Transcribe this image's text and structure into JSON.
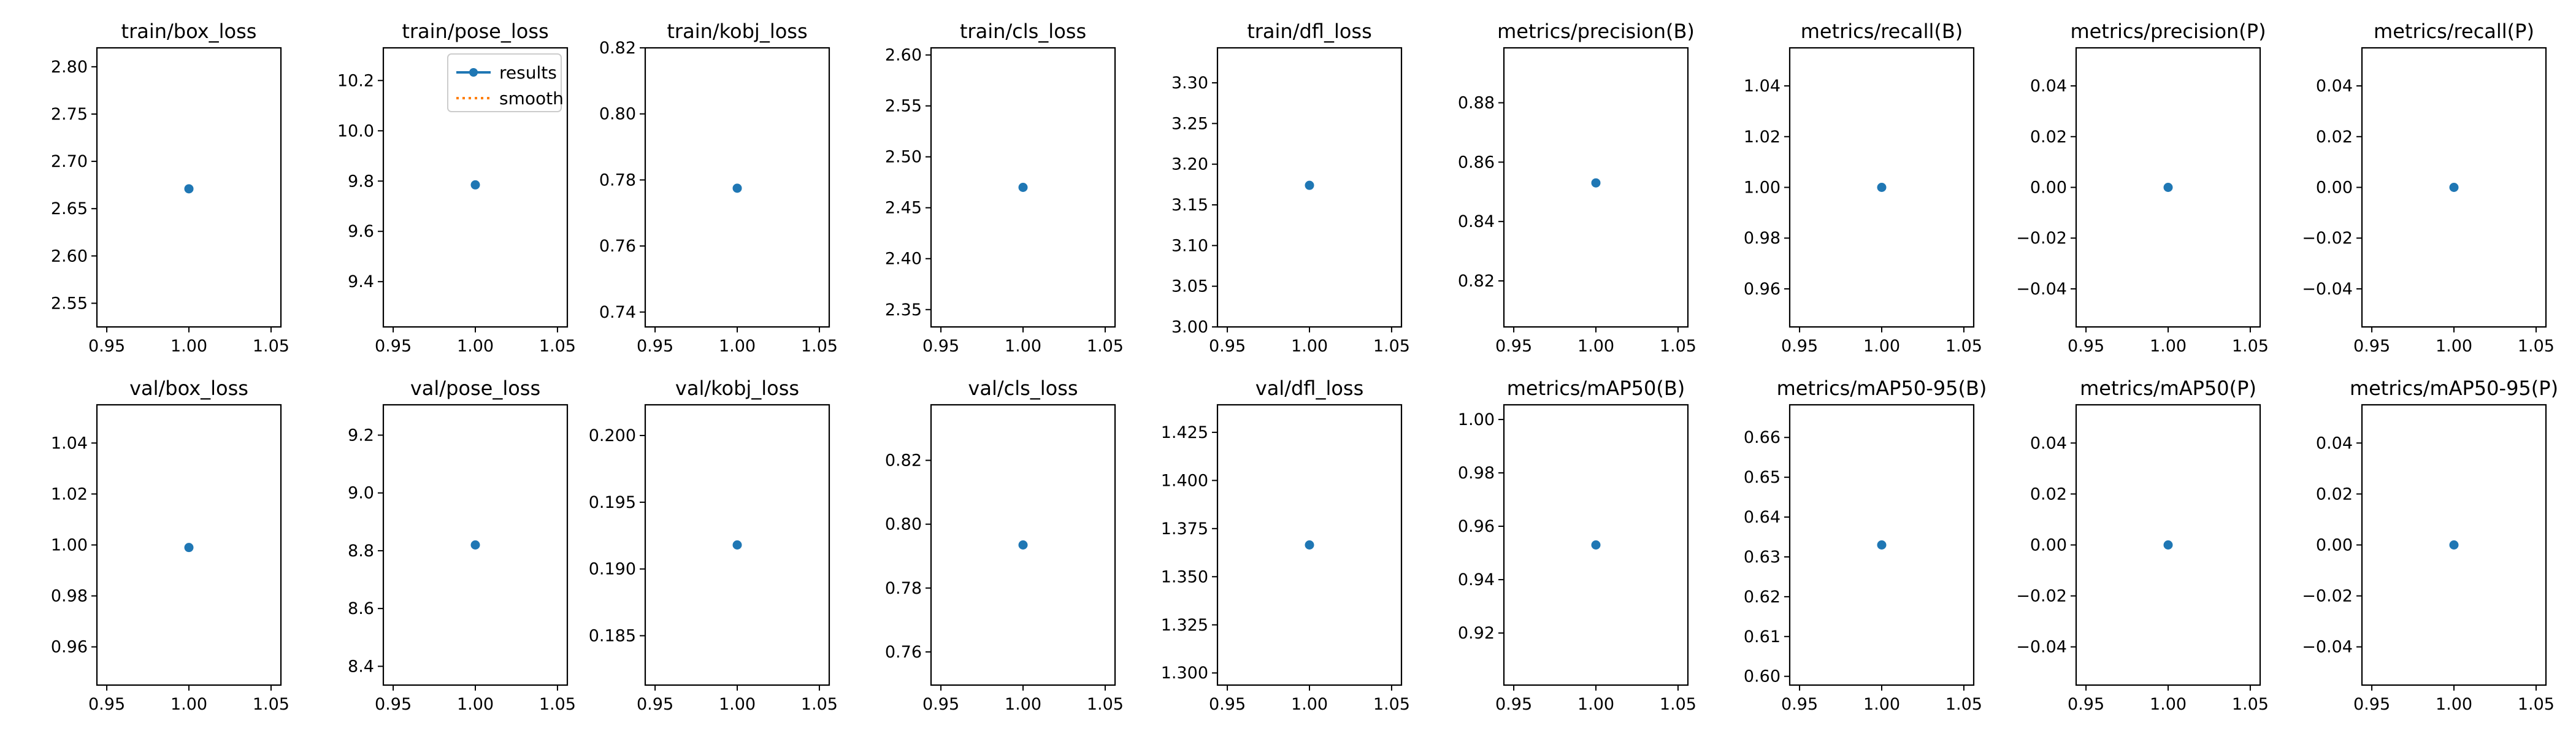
{
  "colors": {
    "results": "#1f77b4",
    "smooth": "#ff7f0e"
  },
  "legend": {
    "placement": "top-right",
    "entries": [
      {
        "name": "results",
        "style": "solid-line-with-marker",
        "color": "#1f77b4"
      },
      {
        "name": "smooth",
        "style": "dotted-line",
        "color": "#ff7f0e"
      }
    ]
  },
  "x_axis": {
    "ticks": [
      0.95,
      1.0,
      1.05
    ],
    "tick_labels": [
      "0.95",
      "1.00",
      "1.05"
    ],
    "range": [
      0.944,
      1.056
    ]
  },
  "chart_data": [
    {
      "type": "scatter",
      "title": "train/box_loss",
      "x": [
        1
      ],
      "y": [
        2.671
      ],
      "ylim": [
        2.525,
        2.82
      ],
      "yticks": [
        "2.55",
        "2.60",
        "2.65",
        "2.70",
        "2.75",
        "2.80"
      ],
      "legend": false
    },
    {
      "type": "scatter",
      "title": "train/pose_loss",
      "x": [
        1
      ],
      "y": [
        9.785
      ],
      "ylim": [
        9.22,
        10.33
      ],
      "yticks": [
        "9.4",
        "9.6",
        "9.8",
        "10.0",
        "10.2"
      ],
      "legend": true
    },
    {
      "type": "scatter",
      "title": "train/kobj_loss",
      "x": [
        1
      ],
      "y": [
        0.7775
      ],
      "ylim": [
        0.7355,
        0.82
      ],
      "yticks": [
        "0.74",
        "0.76",
        "0.78",
        "0.80",
        "0.82"
      ],
      "legend": false
    },
    {
      "type": "scatter",
      "title": "train/cls_loss",
      "x": [
        1
      ],
      "y": [
        2.47
      ],
      "ylim": [
        2.333,
        2.607
      ],
      "yticks": [
        "2.35",
        "2.40",
        "2.45",
        "2.50",
        "2.55",
        "2.60"
      ],
      "legend": false
    },
    {
      "type": "scatter",
      "title": "train/dfl_loss",
      "x": [
        1
      ],
      "y": [
        3.174
      ],
      "ylim": [
        3.0,
        3.343
      ],
      "yticks": [
        "3.00",
        "3.05",
        "3.10",
        "3.15",
        "3.20",
        "3.25",
        "3.30"
      ],
      "legend": false
    },
    {
      "type": "scatter",
      "title": "metrics/precision(B)",
      "x": [
        1
      ],
      "y": [
        0.853
      ],
      "ylim": [
        0.8045,
        0.8985
      ],
      "yticks": [
        "0.82",
        "0.84",
        "0.86",
        "0.88"
      ],
      "legend": false
    },
    {
      "type": "scatter",
      "title": "metrics/recall(B)",
      "x": [
        1
      ],
      "y": [
        1.0
      ],
      "ylim": [
        0.945,
        1.055
      ],
      "yticks": [
        "0.96",
        "0.98",
        "1.00",
        "1.02",
        "1.04"
      ],
      "legend": false
    },
    {
      "type": "scatter",
      "title": "metrics/precision(P)",
      "x": [
        1
      ],
      "y": [
        0.0
      ],
      "ylim": [
        -0.055,
        0.055
      ],
      "yticks": [
        "−0.04",
        "−0.02",
        "0.00",
        "0.02",
        "0.04"
      ],
      "legend": false
    },
    {
      "type": "scatter",
      "title": "metrics/recall(P)",
      "x": [
        1
      ],
      "y": [
        0.0
      ],
      "ylim": [
        -0.055,
        0.055
      ],
      "yticks": [
        "−0.04",
        "−0.02",
        "0.00",
        "0.02",
        "0.04"
      ],
      "legend": false
    },
    {
      "type": "scatter",
      "title": "val/box_loss",
      "x": [
        1
      ],
      "y": [
        0.999
      ],
      "ylim": [
        0.945,
        1.055
      ],
      "yticks": [
        "0.96",
        "0.98",
        "1.00",
        "1.02",
        "1.04"
      ],
      "legend": false
    },
    {
      "type": "scatter",
      "title": "val/pose_loss",
      "x": [
        1
      ],
      "y": [
        8.82
      ],
      "ylim": [
        8.335,
        9.305
      ],
      "yticks": [
        "8.4",
        "8.6",
        "8.8",
        "9.0",
        "9.2"
      ],
      "legend": false
    },
    {
      "type": "scatter",
      "title": "val/kobj_loss",
      "x": [
        1
      ],
      "y": [
        0.1918
      ],
      "ylim": [
        0.1813,
        0.2023
      ],
      "yticks": [
        "0.185",
        "0.190",
        "0.195",
        "0.200"
      ],
      "legend": false
    },
    {
      "type": "scatter",
      "title": "val/cls_loss",
      "x": [
        1
      ],
      "y": [
        0.7935
      ],
      "ylim": [
        0.7496,
        0.8374
      ],
      "yticks": [
        "0.76",
        "0.78",
        "0.80",
        "0.82"
      ],
      "legend": false
    },
    {
      "type": "scatter",
      "title": "val/dfl_loss",
      "x": [
        1
      ],
      "y": [
        1.3665
      ],
      "ylim": [
        1.2937,
        1.4393
      ],
      "yticks": [
        "1.300",
        "1.325",
        "1.350",
        "1.375",
        "1.400",
        "1.425"
      ],
      "legend": false
    },
    {
      "type": "scatter",
      "title": "metrics/mAP50(B)",
      "x": [
        1
      ],
      "y": [
        0.953
      ],
      "ylim": [
        0.9005,
        1.0055
      ],
      "yticks": [
        "0.92",
        "0.94",
        "0.96",
        "0.98",
        "1.00"
      ],
      "legend": false
    },
    {
      "type": "scatter",
      "title": "metrics/mAP50-95(B)",
      "x": [
        1
      ],
      "y": [
        0.633
      ],
      "ylim": [
        0.5978,
        0.6682
      ],
      "yticks": [
        "0.60",
        "0.61",
        "0.62",
        "0.63",
        "0.64",
        "0.65",
        "0.66"
      ],
      "legend": false
    },
    {
      "type": "scatter",
      "title": "metrics/mAP50(P)",
      "x": [
        1
      ],
      "y": [
        0.0
      ],
      "ylim": [
        -0.055,
        0.055
      ],
      "yticks": [
        "−0.04",
        "−0.02",
        "0.00",
        "0.02",
        "0.04"
      ],
      "legend": false
    },
    {
      "type": "scatter",
      "title": "metrics/mAP50-95(P)",
      "x": [
        1
      ],
      "y": [
        0.0
      ],
      "ylim": [
        -0.055,
        0.055
      ],
      "yticks": [
        "−0.04",
        "−0.02",
        "0.00",
        "0.02",
        "0.04"
      ],
      "legend": false
    }
  ]
}
